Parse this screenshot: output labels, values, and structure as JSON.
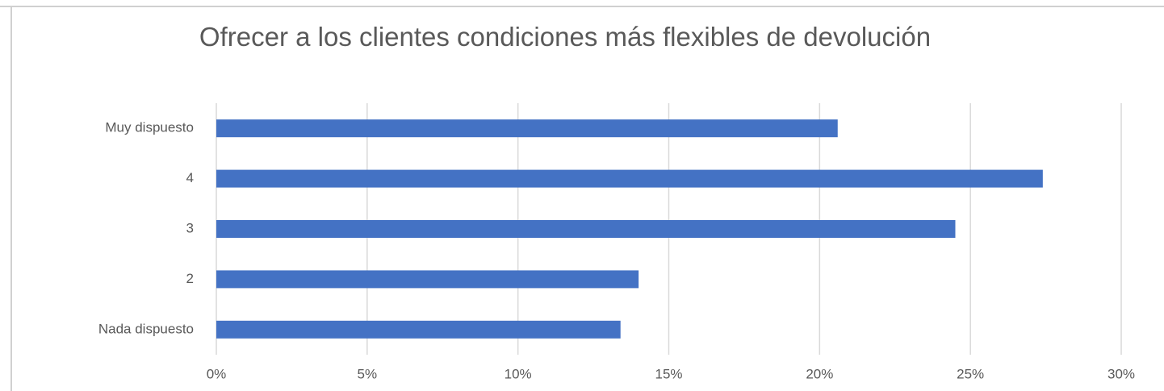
{
  "chart_data": {
    "type": "bar",
    "orientation": "horizontal",
    "title": "Ofrecer a los clientes condiciones más flexibles de devolución",
    "categories": [
      "Muy dispuesto",
      "4",
      "3",
      "2",
      "Nada dispuesto"
    ],
    "values": [
      20.6,
      27.4,
      24.5,
      14.0,
      13.4
    ],
    "color": "#4472c4",
    "xlim": [
      0,
      30
    ],
    "xticks": [
      {
        "value": 0,
        "label": "0%"
      },
      {
        "value": 5,
        "label": "5%"
      },
      {
        "value": 10,
        "label": "10%"
      },
      {
        "value": 15,
        "label": "15%"
      },
      {
        "value": 20,
        "label": "20%"
      },
      {
        "value": 25,
        "label": "25%"
      },
      {
        "value": 30,
        "label": "30%"
      }
    ],
    "grid": true
  }
}
